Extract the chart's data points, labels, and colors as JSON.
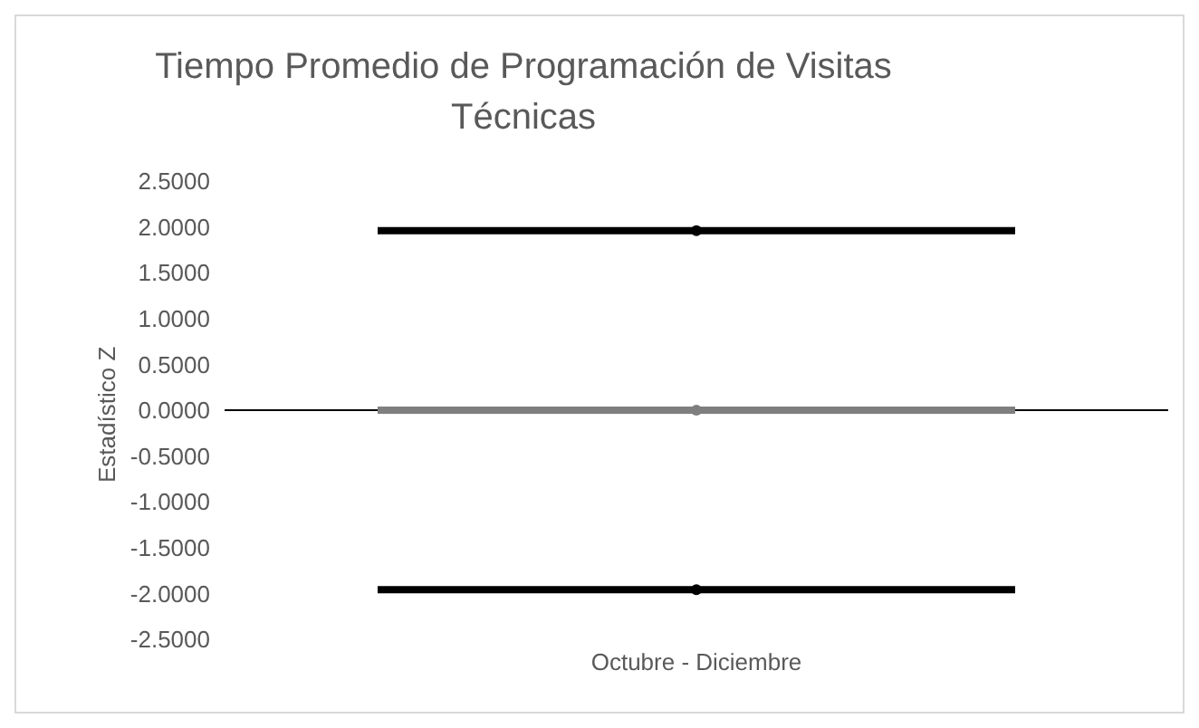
{
  "chart_data": {
    "type": "scatter",
    "title": "Tiempo Promedio de Programación de Visitas Técnicas",
    "ylabel": "Estadístico Z",
    "categories": [
      "Octubre  - Diciembre"
    ],
    "series": [
      {
        "color": "#000000",
        "values": [
          1.96
        ]
      },
      {
        "color": "#7f7f7f",
        "values": [
          0
        ]
      },
      {
        "color": "#000000",
        "values": [
          -1.96
        ]
      }
    ],
    "ylim": [
      -2.5,
      2.5
    ],
    "yticks": [
      {
        "value": 2.5,
        "label": "2.5000"
      },
      {
        "value": 2,
        "label": "2.0000"
      },
      {
        "value": 1.5,
        "label": "1.5000"
      },
      {
        "value": 1,
        "label": "1.0000"
      },
      {
        "value": 0.5,
        "label": "0.5000"
      },
      {
        "value": 0,
        "label": "0.0000"
      },
      {
        "value": -0.5,
        "label": "-0.5000"
      },
      {
        "value": -1,
        "label": "-1.0000"
      },
      {
        "value": -1.5,
        "label": "-1.5000"
      },
      {
        "value": -2,
        "label": "-2.0000"
      },
      {
        "value": -2.5,
        "label": "-2.5000"
      }
    ],
    "legend": false
  }
}
